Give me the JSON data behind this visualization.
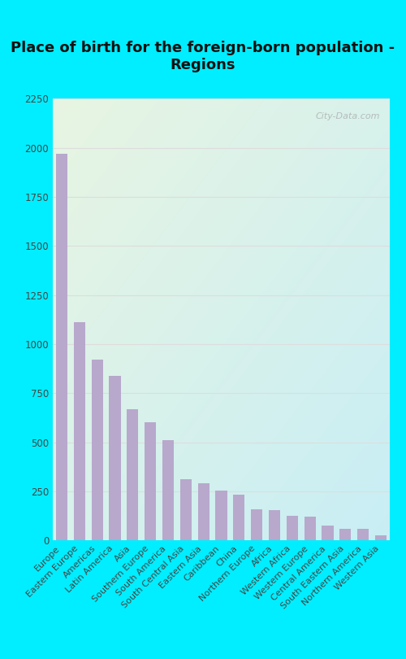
{
  "title": "Place of birth for the foreign-born population -\nRegions",
  "categories": [
    "Europe",
    "Eastern Europe",
    "Americas",
    "Latin America",
    "Asia",
    "Southern Europe",
    "South America",
    "South Central Asia",
    "Eastern Asia",
    "Caribbean",
    "China",
    "Northern Europe",
    "Africa",
    "Western Africa",
    "Western Europe",
    "Central America",
    "South Eastern Asia",
    "Northern America",
    "Western Asia"
  ],
  "values": [
    1970,
    1110,
    920,
    840,
    670,
    600,
    510,
    310,
    290,
    255,
    235,
    160,
    155,
    125,
    120,
    75,
    60,
    60,
    25
  ],
  "bar_color": "#b8a8cc",
  "background_outer": "#00eeff",
  "background_plot_topleft": "#e8f5e2",
  "background_plot_bottomright": "#c8eef5",
  "ylim": [
    0,
    2250
  ],
  "yticks": [
    0,
    250,
    500,
    750,
    1000,
    1250,
    1500,
    1750,
    2000,
    2250
  ],
  "title_fontsize": 13,
  "tick_fontsize": 8,
  "watermark": "City-Data.com",
  "grid_color": "#dddddd"
}
